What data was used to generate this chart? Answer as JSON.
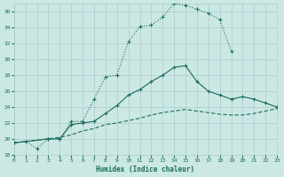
{
  "xlabel": "Humidex (Indice chaleur)",
  "background_color": "#cce8e4",
  "grid_color": "#aacccc",
  "line_color": "#1a6b5a",
  "xlim": [
    0,
    23
  ],
  "ylim": [
    18,
    37
  ],
  "xticks": [
    0,
    1,
    2,
    3,
    4,
    5,
    6,
    7,
    8,
    9,
    10,
    11,
    12,
    13,
    14,
    15,
    16,
    17,
    18,
    19,
    20,
    21,
    22,
    23
  ],
  "yticks": [
    18,
    20,
    22,
    24,
    26,
    28,
    30,
    32,
    34,
    36
  ],
  "line1_x": [
    0,
    1,
    2,
    3,
    4,
    5,
    6,
    7,
    8,
    9,
    10,
    11,
    12,
    13,
    14,
    15,
    16,
    17,
    18,
    19
  ],
  "line1_y": [
    19.5,
    19.7,
    18.8,
    20.0,
    20.0,
    22.2,
    22.2,
    25.0,
    27.8,
    28.0,
    32.2,
    34.1,
    34.3,
    35.3,
    37.0,
    36.8,
    36.3,
    35.8,
    35.0,
    31.0
  ],
  "line2_x": [
    0,
    3,
    4,
    5,
    6,
    7,
    8,
    9,
    10,
    11,
    12,
    13,
    14,
    15,
    16,
    17,
    18,
    19,
    20,
    21,
    22,
    23
  ],
  "line2_y": [
    19.5,
    20.0,
    20.0,
    21.8,
    22.0,
    22.2,
    23.2,
    24.2,
    25.5,
    26.2,
    27.2,
    28.0,
    29.0,
    29.2,
    27.2,
    26.0,
    25.5,
    25.0,
    25.3,
    25.0,
    24.5,
    24.0
  ],
  "line3_x": [
    0,
    3,
    4,
    5,
    6,
    7,
    8,
    9,
    10,
    11,
    12,
    13,
    14,
    15,
    16,
    17,
    18,
    19,
    20,
    21,
    22,
    23
  ],
  "line3_y": [
    19.5,
    20.0,
    20.2,
    20.5,
    21.0,
    21.3,
    21.8,
    22.0,
    22.3,
    22.6,
    23.0,
    23.3,
    23.5,
    23.7,
    23.5,
    23.3,
    23.1,
    23.0,
    23.0,
    23.2,
    23.5,
    23.8
  ]
}
